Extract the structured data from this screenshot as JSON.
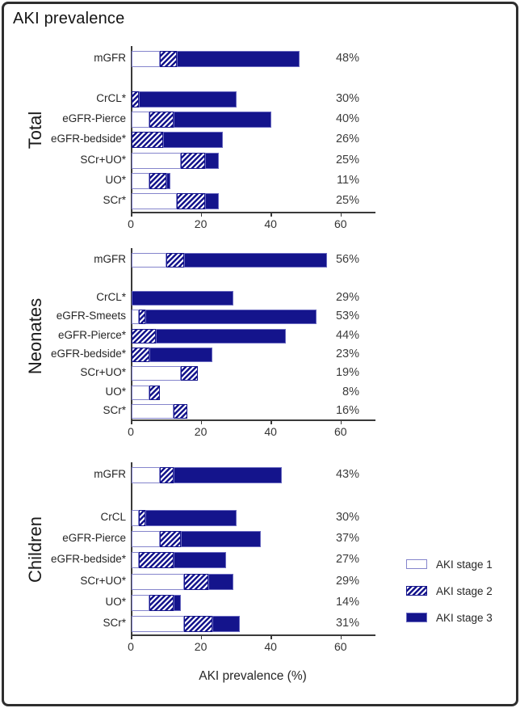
{
  "chart_data": {
    "type": "bar",
    "orientation": "horizontal",
    "stacked": true,
    "title": "AKI prevalence",
    "xlabel": "AKI prevalence (%)",
    "xlim": [
      0,
      70
    ],
    "xticks": [
      0,
      20,
      40,
      60
    ],
    "grid": false,
    "legend_position": "right-bottom",
    "colors": {
      "stage1_fill": "#ffffff",
      "stage1_border": "#8585cc",
      "stage2_hatch": "#14148c",
      "stage3_fill": "#14148c",
      "axis": "#3a3a3a",
      "text": "#262626"
    },
    "legend": [
      {
        "label": "AKI stage 1",
        "style": "outline"
      },
      {
        "label": "AKI stage 2",
        "style": "hatched"
      },
      {
        "label": "AKI stage 3",
        "style": "solid"
      }
    ],
    "series_names": [
      "AKI stage 1",
      "AKI stage 2",
      "AKI stage 3"
    ],
    "panels": [
      {
        "name": "Total",
        "rows": [
          {
            "label": "mGFR",
            "stage1": 8,
            "stage2": 5,
            "stage3": 35,
            "total_label": "48%",
            "gap_after": true
          },
          {
            "label": "CrCL*",
            "stage1": 0,
            "stage2": 2,
            "stage3": 28,
            "total_label": "30%"
          },
          {
            "label": "eGFR-Pierce",
            "stage1": 5,
            "stage2": 7,
            "stage3": 28,
            "total_label": "40%"
          },
          {
            "label": "eGFR-bedside*",
            "stage1": 0,
            "stage2": 9,
            "stage3": 17,
            "total_label": "26%"
          },
          {
            "label": "SCr+UO*",
            "stage1": 14,
            "stage2": 7,
            "stage3": 4,
            "total_label": "25%"
          },
          {
            "label": "UO*",
            "stage1": 5,
            "stage2": 5,
            "stage3": 1,
            "total_label": "11%"
          },
          {
            "label": "SCr*",
            "stage1": 13,
            "stage2": 8,
            "stage3": 4,
            "total_label": "25%"
          }
        ]
      },
      {
        "name": "Neonates",
        "rows": [
          {
            "label": "mGFR",
            "stage1": 10,
            "stage2": 5,
            "stage3": 41,
            "total_label": "56%",
            "gap_after": true
          },
          {
            "label": "CrCL*",
            "stage1": 0,
            "stage2": 0,
            "stage3": 29,
            "total_label": "29%"
          },
          {
            "label": "eGFR-Smeets",
            "stage1": 2,
            "stage2": 2,
            "stage3": 49,
            "total_label": "53%"
          },
          {
            "label": "eGFR-Pierce*",
            "stage1": 0,
            "stage2": 7,
            "stage3": 37,
            "total_label": "44%"
          },
          {
            "label": "eGFR-bedside*",
            "stage1": 0,
            "stage2": 5,
            "stage3": 18,
            "total_label": "23%"
          },
          {
            "label": "SCr+UO*",
            "stage1": 14,
            "stage2": 5,
            "stage3": 0,
            "total_label": "19%"
          },
          {
            "label": "UO*",
            "stage1": 5,
            "stage2": 3,
            "stage3": 0,
            "total_label": "8%"
          },
          {
            "label": "SCr*",
            "stage1": 12,
            "stage2": 4,
            "stage3": 0,
            "total_label": "16%"
          }
        ]
      },
      {
        "name": "Children",
        "rows": [
          {
            "label": "mGFR",
            "stage1": 8,
            "stage2": 4,
            "stage3": 31,
            "total_label": "43%",
            "gap_after": true
          },
          {
            "label": "CrCL",
            "stage1": 2,
            "stage2": 2,
            "stage3": 26,
            "total_label": "30%"
          },
          {
            "label": "eGFR-Pierce",
            "stage1": 8,
            "stage2": 6,
            "stage3": 23,
            "total_label": "37%"
          },
          {
            "label": "eGFR-bedside*",
            "stage1": 2,
            "stage2": 10,
            "stage3": 15,
            "total_label": "27%"
          },
          {
            "label": "SCr+UO*",
            "stage1": 15,
            "stage2": 7,
            "stage3": 7,
            "total_label": "29%"
          },
          {
            "label": "UO*",
            "stage1": 5,
            "stage2": 7,
            "stage3": 2,
            "total_label": "14%"
          },
          {
            "label": "SCr*",
            "stage1": 15,
            "stage2": 8,
            "stage3": 8,
            "total_label": "31%"
          }
        ]
      }
    ]
  }
}
